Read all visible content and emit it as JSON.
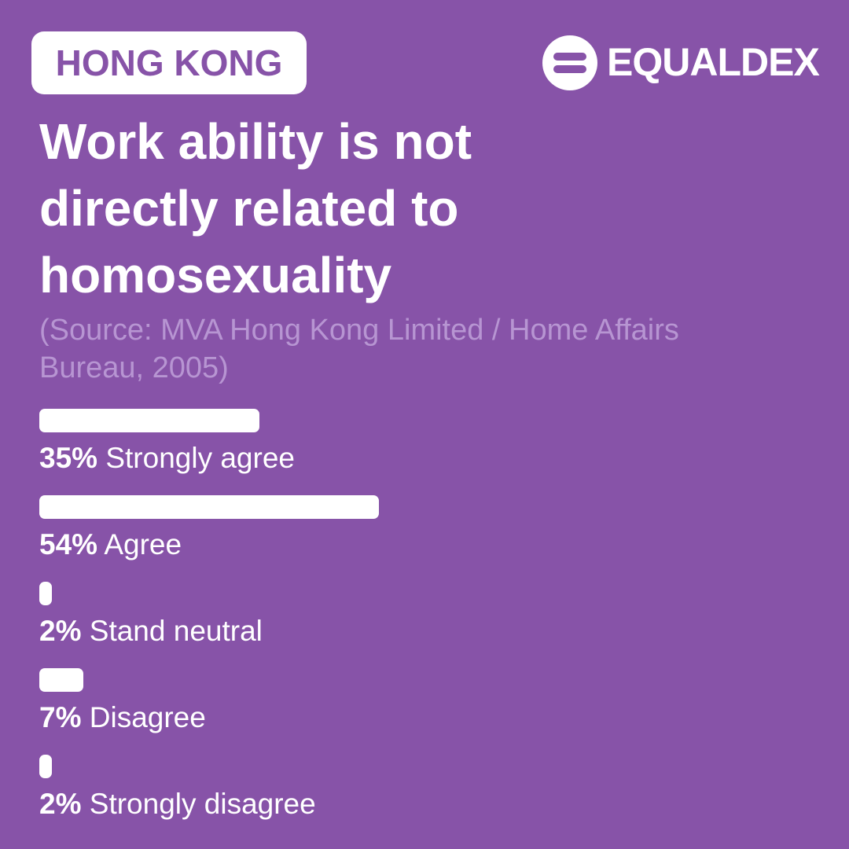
{
  "chart_data": {
    "type": "bar",
    "badge": "HONG KONG",
    "brand": "EQUALDEX",
    "title": "Work ability is not directly related to homosexuality",
    "source": "(Source: MVA Hong Kong Limited / Home Affairs Bureau, 2005)",
    "categories": [
      "Strongly agree",
      "Agree",
      "Stand neutral",
      "Disagree",
      "Strongly disagree"
    ],
    "values": [
      35,
      54,
      2,
      7,
      2
    ],
    "value_labels": [
      "35%",
      "54%",
      "2%",
      "7%",
      "2%"
    ],
    "color": "#ffffff",
    "background": "#8753a8"
  }
}
